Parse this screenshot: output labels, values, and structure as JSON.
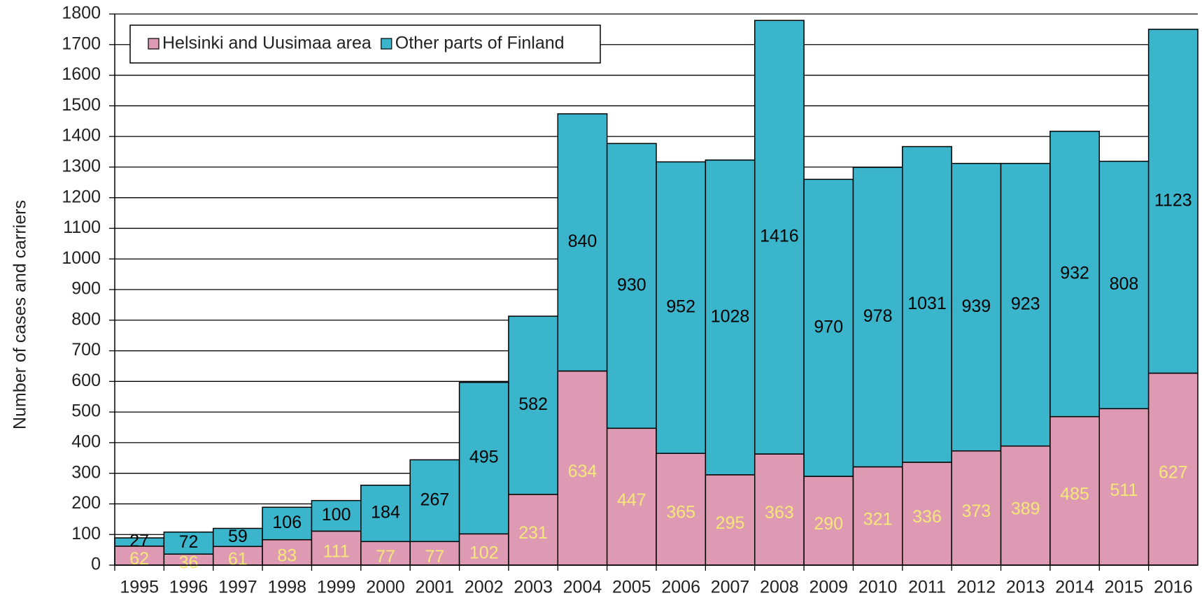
{
  "chart_data": {
    "type": "stacked_bar",
    "ylabel": "Number of cases and carriers",
    "categories": [
      "1995",
      "1996",
      "1997",
      "1998",
      "1999",
      "2000",
      "2001",
      "2002",
      "2003",
      "2004",
      "2005",
      "2006",
      "2007",
      "2008",
      "2009",
      "2010",
      "2011",
      "2012",
      "2013",
      "2014",
      "2015",
      "2016"
    ],
    "series": [
      {
        "name": "Helsinki and Uusimaa area",
        "color": "#de9ab3",
        "label_color": "#f5e87a",
        "values": [
          62,
          36,
          61,
          83,
          111,
          77,
          77,
          102,
          231,
          634,
          447,
          365,
          295,
          363,
          290,
          321,
          336,
          373,
          389,
          485,
          511,
          627
        ]
      },
      {
        "name": "Other parts of Finland",
        "color": "#3ab5cb",
        "label_color": "#000000",
        "values": [
          27,
          72,
          59,
          106,
          100,
          184,
          267,
          495,
          582,
          840,
          930,
          952,
          1028,
          1416,
          970,
          978,
          1031,
          939,
          923,
          932,
          808,
          1123
        ]
      }
    ],
    "ylim": [
      0,
      1800
    ],
    "yticks": [
      0,
      100,
      200,
      300,
      400,
      500,
      600,
      700,
      800,
      900,
      1000,
      1100,
      1200,
      1300,
      1400,
      1500,
      1600,
      1700,
      1800
    ],
    "grid": true,
    "legend": "top-left"
  }
}
